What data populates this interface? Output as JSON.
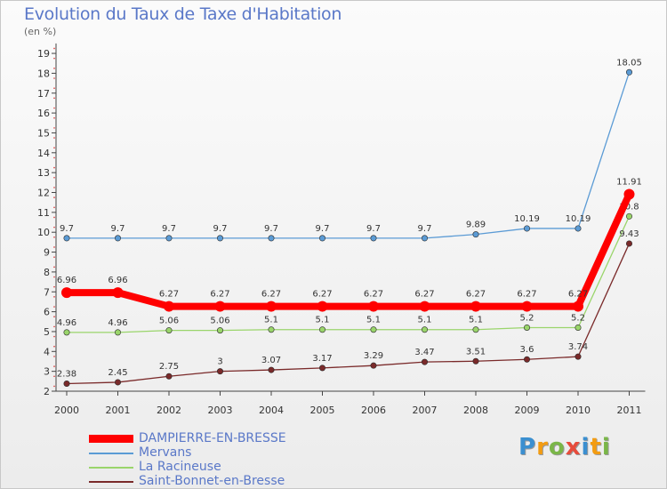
{
  "header": {
    "title": "Evolution du Taux de Taxe d'Habitation",
    "subtitle": "(en %)"
  },
  "logo": {
    "text": "Proxiti"
  },
  "chart_data": {
    "type": "line",
    "title": "Evolution du Taux de Taxe d'Habitation",
    "subtitle": "(en %)",
    "xlabel": "",
    "ylabel": "",
    "categories": [
      "2000",
      "2001",
      "2002",
      "2003",
      "2004",
      "2005",
      "2006",
      "2007",
      "2008",
      "2009",
      "2010",
      "2011"
    ],
    "yticks": [
      2,
      3,
      4,
      5,
      6,
      7,
      8,
      9,
      10,
      11,
      12,
      13,
      14,
      15,
      16,
      17,
      18,
      19
    ],
    "ylim": [
      2,
      19.5
    ],
    "grid": false,
    "legend_position": "bottom-left",
    "series": [
      {
        "name": "Mervans",
        "color": "#5b9bd5",
        "values": [
          9.7,
          9.7,
          9.7,
          9.7,
          9.7,
          9.7,
          9.7,
          9.7,
          9.89,
          10.19,
          10.19,
          18.05
        ],
        "labels": [
          "9.7",
          "9.7",
          "9.7",
          "9.7",
          "9.7",
          "9.7",
          "9.7",
          "9.7",
          "9.89",
          "10.19",
          "10.19",
          "18.05"
        ]
      },
      {
        "name": "La Racineuse",
        "color": "#9ad56b",
        "values": [
          4.96,
          4.96,
          5.06,
          5.06,
          5.1,
          5.1,
          5.1,
          5.1,
          5.1,
          5.2,
          5.2,
          10.8
        ],
        "labels": [
          "4.96",
          "4.96",
          "5.06",
          "5.06",
          "5.1",
          "5.1",
          "5.1",
          "5.1",
          "5.1",
          "5.2",
          "5.2",
          "10.8"
        ]
      },
      {
        "name": "Saint-Bonnet-en-Bresse",
        "color": "#7a2a2a",
        "values": [
          2.38,
          2.45,
          2.75,
          3,
          3.07,
          3.17,
          3.29,
          3.47,
          3.51,
          3.6,
          3.74,
          9.43
        ],
        "labels": [
          "2.38",
          "2.45",
          "2.75",
          "3",
          "3.07",
          "3.17",
          "3.29",
          "3.47",
          "3.51",
          "3.6",
          "3.74",
          "9.43"
        ]
      },
      {
        "name": "DAMPIERRE-EN-BRESSE",
        "color": "#ff0000",
        "values": [
          6.96,
          6.96,
          6.27,
          6.27,
          6.27,
          6.27,
          6.27,
          6.27,
          6.27,
          6.27,
          6.27,
          11.91
        ],
        "labels": [
          "6.96",
          "6.96",
          "6.27",
          "6.27",
          "6.27",
          "6.27",
          "6.27",
          "6.27",
          "6.27",
          "6.27",
          "6.27",
          "11.91"
        ]
      }
    ],
    "legend": [
      {
        "name": "DAMPIERRE-EN-BRESSE",
        "color": "#ff0000"
      },
      {
        "name": "Mervans",
        "color": "#5b9bd5"
      },
      {
        "name": "La Racineuse",
        "color": "#9ad56b"
      },
      {
        "name": "Saint-Bonnet-en-Bresse",
        "color": "#7a2a2a"
      }
    ]
  }
}
